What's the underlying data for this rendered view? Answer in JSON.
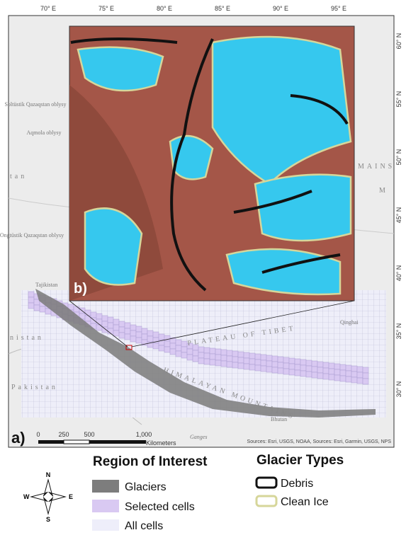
{
  "map": {
    "longitude_labels": [
      "70° E",
      "75° E",
      "80° E",
      "85° E",
      "90° E",
      "95° E"
    ],
    "latitude_labels": [
      "60° N",
      "55° N",
      "50° N",
      "45° N",
      "40° N",
      "35° N",
      "30° N"
    ],
    "places": {
      "north_kz": "Soltüstik Qazaqstan oblysy",
      "aqmola": "Aqmola oblysy",
      "tan": "tan",
      "south_kz": "Ongtüstik Qazaqstan oblysy",
      "tajikistan": "Tajikistan",
      "nistan": "nistan",
      "pakistan": "Pakistan",
      "tibet": "PLATEAU OF TIBET",
      "himalaya": "HIMALAYAN MOUNTAINS",
      "qinghai": "Qinghai",
      "bhutan": "Bhutan",
      "ganges": "Ganges",
      "mains": "MAINS",
      "m": "M"
    },
    "panel_a": "a)",
    "panel_b": "b)",
    "scale_bar": {
      "labels": [
        "0",
        "250",
        "500",
        "1,000"
      ],
      "unit": "Kilometers"
    },
    "sources": "Sources: Esri, USGS, NOAA, Sources: Esri, Garmin, USGS, NPS"
  },
  "legend": {
    "region": {
      "title": "Region of Interest",
      "items": [
        "Glaciers",
        "Selected cells",
        "All cells"
      ]
    },
    "glacier_types": {
      "title": "Glacier Types",
      "items": [
        "Debris",
        "Clean Ice"
      ]
    }
  },
  "compass": {
    "n": "N",
    "s": "S",
    "e": "E",
    "w": "W"
  }
}
